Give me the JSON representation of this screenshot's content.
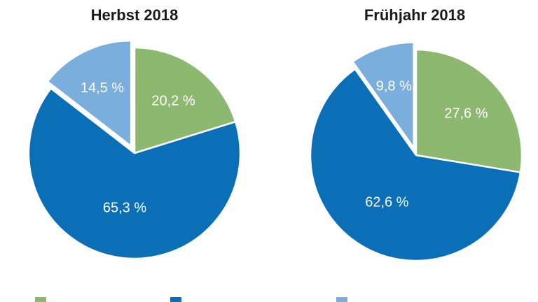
{
  "chart_data": [
    {
      "type": "pie",
      "title": "Herbst 2018",
      "slices": [
        {
          "series": "green",
          "value": 20.2,
          "label": "20,2 %"
        },
        {
          "series": "blue",
          "value": 65.3,
          "label": "65,3 %"
        },
        {
          "series": "lightblue",
          "value": 14.5,
          "label": "14,5 %"
        }
      ]
    },
    {
      "type": "pie",
      "title": "Frühjahr 2018",
      "slices": [
        {
          "series": "green",
          "value": 27.6,
          "label": "27,6 %"
        },
        {
          "series": "blue",
          "value": 62.6,
          "label": "62,6 %"
        },
        {
          "series": "lightblue",
          "value": 9.8,
          "label": "9,8 %"
        }
      ]
    }
  ],
  "legend": [
    {
      "series": "green",
      "color": "#8cb870"
    },
    {
      "series": "blue",
      "color": "#0a6fb7"
    },
    {
      "series": "lightblue",
      "color": "#7aaedc"
    }
  ],
  "colors": {
    "green": "#8cb870",
    "blue": "#0a6fb7",
    "lightblue": "#7aaedc",
    "separator": "#ffffff"
  }
}
